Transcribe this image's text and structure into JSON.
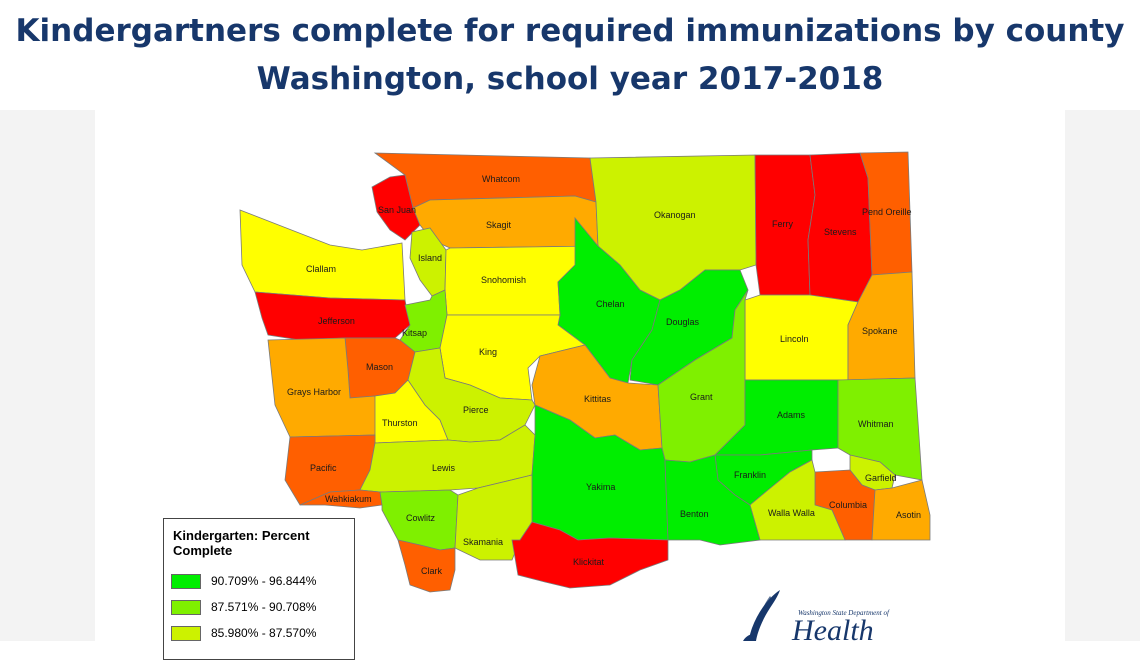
{
  "title": {
    "line1": "Kindergartners complete for required immunizations by county",
    "line2": "Washington, school year 2017-2018"
  },
  "colors": {
    "c1": "#00ee00",
    "c2": "#7ff000",
    "c3": "#ccf200",
    "c4": "#ffff00",
    "c5": "#ffaa00",
    "c6": "#ff5f00",
    "c7": "#ff0000"
  },
  "counties": {
    "whatcom": "Whatcom",
    "sanjuan": "San Juan",
    "skagit": "Skagit",
    "okanogan": "Okanogan",
    "ferry": "Ferry",
    "stevens": "Stevens",
    "pendoreille": "Pend Oreille",
    "clallam": "Clallam",
    "island": "Island",
    "snohomish": "Snohomish",
    "chelan": "Chelan",
    "douglas": "Douglas",
    "jefferson": "Jefferson",
    "kitsap": "Kitsap",
    "king": "King",
    "lincoln": "Lincoln",
    "spokane": "Spokane",
    "mason": "Mason",
    "graysharbor": "Grays Harbor",
    "kittitas": "Kittitas",
    "grant": "Grant",
    "adams": "Adams",
    "whitman": "Whitman",
    "thurston": "Thurston",
    "pierce": "Pierce",
    "pacific": "Pacific",
    "lewis": "Lewis",
    "yakima": "Yakima",
    "franklin": "Franklin",
    "garfield": "Garfield",
    "wahkiakum": "Wahkiakum",
    "columbia": "Columbia",
    "asotin": "Asotin",
    "cowlitz": "Cowlitz",
    "wallawalla": "Walla Walla",
    "benton": "Benton",
    "skamania": "Skamania",
    "clark": "Clark",
    "klickitat": "Klickitat"
  },
  "legend": {
    "title": "Kindergarten: Percent Complete",
    "items": [
      {
        "label": "90.709% - 96.844%",
        "color": "#00ee00"
      },
      {
        "label": "87.571% - 90.708%",
        "color": "#7ff000"
      },
      {
        "label": "85.980% - 87.570%",
        "color": "#ccf200"
      }
    ]
  },
  "logo": {
    "subtitle": "Washington State Department of",
    "name": "Health"
  }
}
